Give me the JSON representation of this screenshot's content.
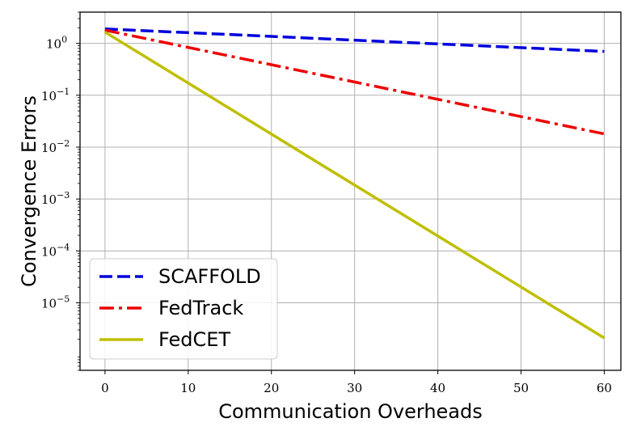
{
  "chart_data": {
    "type": "line",
    "xlabel": "Communication Overheads",
    "ylabel": "Convergence Errors",
    "x_ticks": [
      0,
      10,
      20,
      30,
      40,
      50,
      60
    ],
    "y_tick_exponents": [
      0,
      -1,
      -2,
      -3,
      -4,
      -5
    ],
    "y_tick_base": "10",
    "xlim": [
      -3,
      62
    ],
    "ylim": [
      5e-07,
      4
    ],
    "y_scale": "log",
    "grid": true,
    "legend_position": "lower-left",
    "series": [
      {
        "name": "SCAFFOLD",
        "color": "#0000dd",
        "dash": "dashed",
        "x": [
          0,
          60
        ],
        "y": [
          1.9,
          0.7
        ]
      },
      {
        "name": "FedTrack",
        "color": "#ee0000",
        "dash": "dashdot",
        "x": [
          0,
          60
        ],
        "y": [
          1.8,
          0.018
        ]
      },
      {
        "name": "FedCET",
        "color": "#bfbf00",
        "dash": "solid",
        "x": [
          0,
          60
        ],
        "y": [
          1.65,
          2.1e-06
        ]
      }
    ]
  }
}
